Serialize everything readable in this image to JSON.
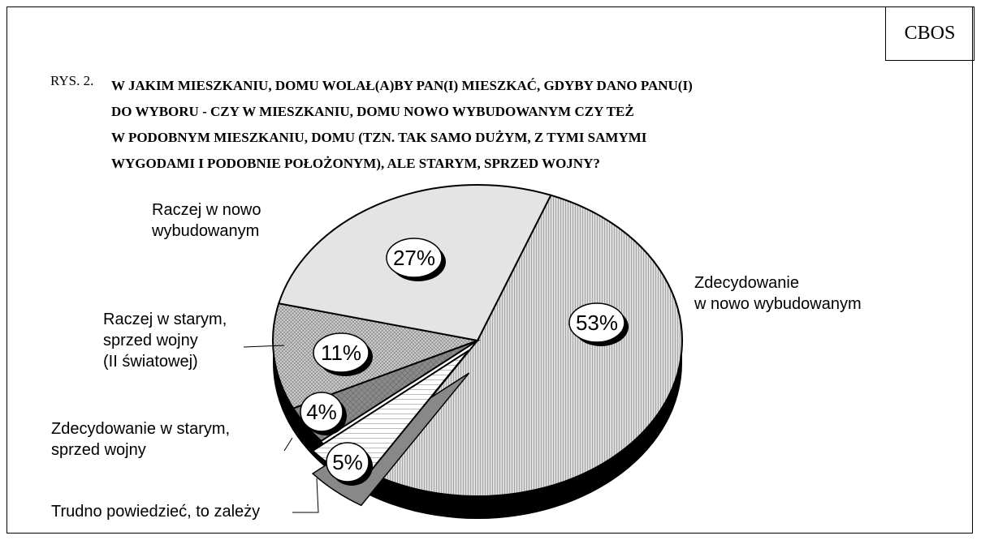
{
  "source": "CBOS",
  "figure_label": "RYS. 2.",
  "chart_data": {
    "type": "pie",
    "title": "W JAKIM MIESZKANIU, DOMU WOLAŁ(A)BY PAN(I) MIESZKAĆ, GDYBY DANO PANU(I)\nDO  WYBORU - CZY W MIESZKANIU, DOMU NOWO WYBUDOWANYM CZY TEŻ\nW  PODOBNYM MIESZKANIU,  DOMU (TZN. TAK SAMO DUŻYM, Z TYMI SAMYMI\nWYGODAMI I PODOBNIE POŁOŻONYM), ALE STARYM, SPRZED WOJNY?",
    "categories": [
      "Zdecydowanie\nw nowo wybudowanym",
      "Trudno powiedzieć, to zależy",
      "Zdecydowanie w starym,\nsprzed wojny",
      "Raczej w starym,\nsprzed wojny\n(II światowej)",
      "Raczej w nowo\nwybudowanym"
    ],
    "values": [
      53,
      5,
      4,
      11,
      27
    ],
    "value_labels": [
      "53%",
      "5%",
      "4%",
      "11%",
      "27%"
    ],
    "colors": [
      "#dcdcdc",
      "#ffffff",
      "#8a8a8a",
      "#d0d0d0",
      "#e4e4e4"
    ]
  }
}
